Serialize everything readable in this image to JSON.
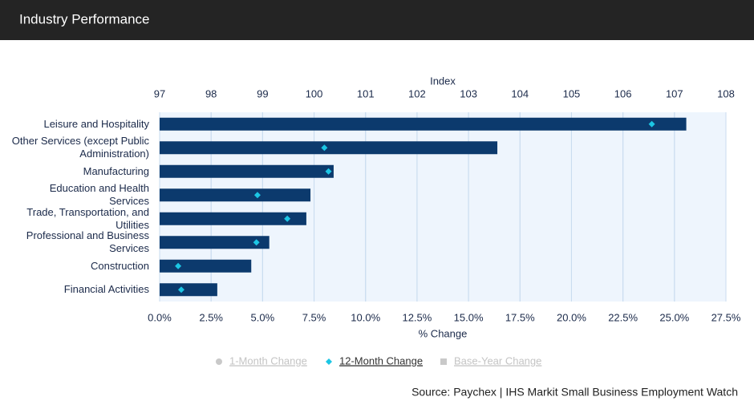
{
  "header": {
    "title": "Industry Performance"
  },
  "chart_data": {
    "type": "bar-dot",
    "categories": [
      "Leisure and Hospitality",
      "Other Services (except Public Administration)",
      "Manufacturing",
      "Education and Health Services",
      "Trade, Transportation, and Utilities",
      "Professional and Business Services",
      "Construction",
      "Financial Activities"
    ],
    "x2_label": "Index",
    "x_label": "% Change",
    "bars": {
      "color": "#0c3a6d",
      "values": [
        107.23,
        103.56,
        100.38,
        99.93,
        99.85,
        99.13,
        98.78,
        98.12
      ]
    },
    "series": [
      {
        "name": "12-Month Change",
        "color": "#1cc6e4",
        "marker": "diamond",
        "values": [
          23.9,
          8.0,
          8.2,
          4.75,
          6.2,
          4.7,
          0.9,
          1.05
        ]
      }
    ],
    "hidden_series": [
      {
        "name": "1-Month Change",
        "color": "#c9c9c9",
        "marker": "circle"
      },
      {
        "name": "Base-Year Change",
        "color": "#c9c9c9",
        "marker": "square"
      }
    ],
    "x2lim": [
      97,
      108
    ],
    "x2ticks": [
      97,
      98,
      99,
      100,
      101,
      102,
      103,
      104,
      105,
      106,
      107,
      108
    ],
    "xlim": [
      0,
      27.5
    ],
    "xticks": [
      {
        "value": 0,
        "label": "0.0%"
      },
      {
        "value": 2.5,
        "label": "2.5%"
      },
      {
        "value": 5,
        "label": "5.0%"
      },
      {
        "value": 7.5,
        "label": "7.5%"
      },
      {
        "value": 10,
        "label": "10.0%"
      },
      {
        "value": 12.5,
        "label": "12.5%"
      },
      {
        "value": 15,
        "label": "15.0%"
      },
      {
        "value": 17.5,
        "label": "17.5%"
      },
      {
        "value": 20,
        "label": "20.0%"
      },
      {
        "value": 22.5,
        "label": "22.5%"
      },
      {
        "value": 25,
        "label": "25.0%"
      },
      {
        "value": 27.5,
        "label": "27.5%"
      }
    ],
    "grid": true
  },
  "source": "Source: Paychex | IHS Markit Small Business Employment Watch"
}
